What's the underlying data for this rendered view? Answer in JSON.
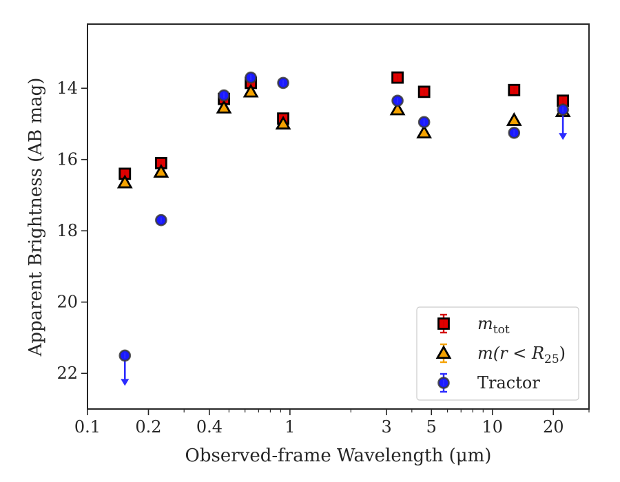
{
  "chart_data": {
    "type": "scatter",
    "xlabel": "Observed-frame Wavelength (μm)",
    "ylabel": "Apparent Brightness (AB mag)",
    "xscale": "log",
    "xlim": [
      0.1,
      30
    ],
    "ylim": [
      23,
      12.2
    ],
    "y_inverted": true,
    "xticks": [
      {
        "value": 0.1,
        "label": "0.1"
      },
      {
        "value": 0.2,
        "label": "0.2"
      },
      {
        "value": 0.4,
        "label": "0.4"
      },
      {
        "value": 1,
        "label": "1"
      },
      {
        "value": 3,
        "label": "3"
      },
      {
        "value": 5,
        "label": "5"
      },
      {
        "value": 10,
        "label": "10"
      },
      {
        "value": 20,
        "label": "20"
      }
    ],
    "yticks": [
      {
        "value": 14,
        "label": "14"
      },
      {
        "value": 16,
        "label": "16"
      },
      {
        "value": 18,
        "label": "18"
      },
      {
        "value": 20,
        "label": "20"
      },
      {
        "value": 22,
        "label": "22"
      }
    ],
    "grid": false,
    "legend_position": "lower right",
    "series": [
      {
        "name": "m_tot",
        "legend_main": "m",
        "legend_sub": "tot",
        "marker": "square",
        "face_color": "#e00000",
        "error_color": "#d40000",
        "points": [
          {
            "x": 0.153,
            "y": 16.4
          },
          {
            "x": 0.231,
            "y": 16.1
          },
          {
            "x": 0.472,
            "y": 14.3
          },
          {
            "x": 0.641,
            "y": 13.85
          },
          {
            "x": 0.926,
            "y": 14.85
          },
          {
            "x": 3.4,
            "y": 13.7
          },
          {
            "x": 4.6,
            "y": 14.1
          },
          {
            "x": 12.8,
            "y": 14.05
          },
          {
            "x": 22.3,
            "y": 14.35
          }
        ]
      },
      {
        "name": "m(r<R_25)",
        "legend_main": "m(r < R",
        "legend_sub": "25",
        "legend_tail": ")",
        "marker": "triangle",
        "face_color": "#f5a300",
        "error_color": "#f5a300",
        "points": [
          {
            "x": 0.153,
            "y": 16.65
          },
          {
            "x": 0.231,
            "y": 16.35
          },
          {
            "x": 0.472,
            "y": 14.55
          },
          {
            "x": 0.641,
            "y": 14.1
          },
          {
            "x": 0.926,
            "y": 15.0
          },
          {
            "x": 3.4,
            "y": 14.6
          },
          {
            "x": 4.6,
            "y": 15.25
          },
          {
            "x": 12.8,
            "y": 14.9
          },
          {
            "x": 22.3,
            "y": 14.65
          }
        ]
      },
      {
        "name": "Tractor",
        "legend_main": "Tractor",
        "marker": "circle",
        "face_color": "#1a1aff",
        "error_color": "#2b2bff",
        "points": [
          {
            "x": 0.153,
            "y": 21.5,
            "upper_limit": true
          },
          {
            "x": 0.231,
            "y": 17.7
          },
          {
            "x": 0.472,
            "y": 14.2
          },
          {
            "x": 0.641,
            "y": 13.7
          },
          {
            "x": 0.926,
            "y": 13.85
          },
          {
            "x": 3.4,
            "y": 14.35
          },
          {
            "x": 4.6,
            "y": 14.95
          },
          {
            "x": 12.8,
            "y": 15.25
          },
          {
            "x": 22.3,
            "y": 14.6,
            "upper_limit": true
          }
        ]
      }
    ]
  }
}
